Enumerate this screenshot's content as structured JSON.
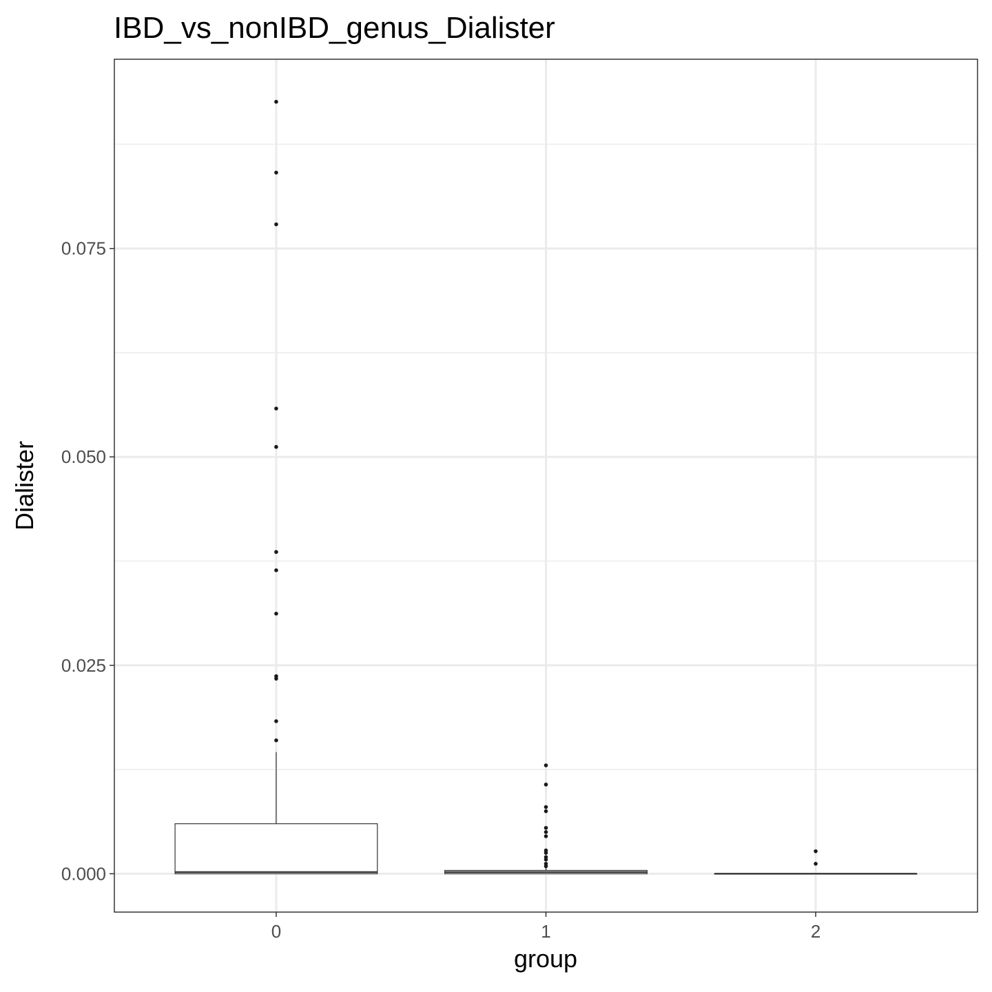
{
  "chart_data": {
    "type": "boxplot",
    "title": "IBD_vs_nonIBD_genus_Dialister",
    "xlabel": "group",
    "ylabel": "Dialister",
    "categories": [
      "0",
      "1",
      "2"
    ],
    "y_ticks": [
      0.0,
      0.025,
      0.05,
      0.075
    ],
    "y_tick_labels": [
      "0.000",
      "0.025",
      "0.050",
      "0.075"
    ],
    "ylim": [
      -0.0046,
      0.0977
    ],
    "grid": true,
    "boxes": [
      {
        "group": "0",
        "q1": 0.0,
        "median": 0.0002,
        "q3": 0.006,
        "whisker_low": 0.0,
        "whisker_high": 0.0146,
        "outliers": [
          0.0926,
          0.0841,
          0.0779,
          0.0558,
          0.0512,
          0.0386,
          0.0364,
          0.0312,
          0.0237,
          0.0234,
          0.0183,
          0.016
        ]
      },
      {
        "group": "1",
        "q1": 0.0,
        "median": 0.0002,
        "q3": 0.0004,
        "whisker_low": 0.0,
        "whisker_high": 0.0008,
        "outliers": [
          0.013,
          0.0107,
          0.008,
          0.0075,
          0.0055,
          0.005,
          0.0045,
          0.0028,
          0.0025,
          0.002,
          0.0017,
          0.0012,
          0.0009
        ]
      },
      {
        "group": "2",
        "q1": 0.0,
        "median": 0.0,
        "q3": 0.0,
        "whisker_low": 0.0,
        "whisker_high": 0.0,
        "outliers": [
          0.0027,
          0.0012
        ]
      }
    ],
    "colors": {
      "panel_border": "#333333",
      "grid_major": "#ebebeb",
      "grid_minor": "#f0f0f0",
      "box_stroke": "#333333",
      "box_fill": "#ffffff",
      "point": "#1a1a1a"
    }
  }
}
